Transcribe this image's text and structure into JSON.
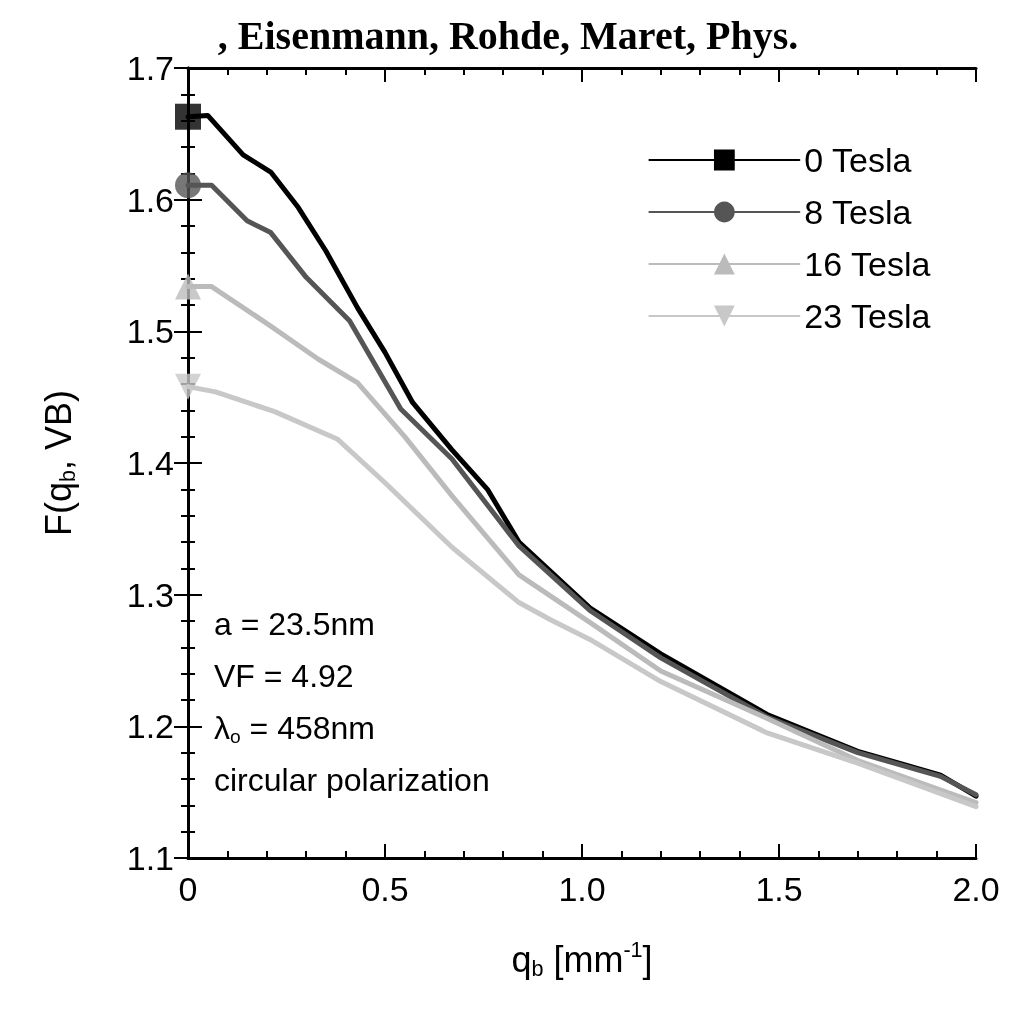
{
  "chart_data": {
    "type": "line",
    "title": ", Eisenmann, Rohde, Maret, Phys.",
    "xlabel": "q$_{b}$ [mm$^{-1}$]",
    "ylabel": "F(q$_{b}$, VB)",
    "xlim": [
      0,
      2
    ],
    "xticks": [
      {
        "value": 0,
        "label": "0"
      },
      0.5,
      {
        "value": 1,
        "label": "1.0"
      },
      1.5,
      {
        "value": 2,
        "label": "2.0"
      }
    ],
    "ylim": [
      1.1,
      1.7
    ],
    "yticks": [
      1.1,
      1.2,
      1.3,
      1.4,
      1.5,
      1.6,
      1.7
    ],
    "legend": "top right",
    "grid": false,
    "line_style": "solid",
    "annotations": [
      "a = 23.5nm",
      "VF = 4.92",
      "λ$_{o}$ = 458nm",
      "circular polarization"
    ],
    "series": [
      {
        "name": "0 Tesla",
        "color": "#000000",
        "x": [
          0,
          0.05,
          0.14,
          0.21,
          0.28,
          0.35,
          0.43,
          0.5,
          0.57,
          0.67,
          0.76,
          0.84,
          1.02,
          1.2,
          1.47,
          1.7,
          1.91,
          2.0
        ],
        "values": [
          1.663,
          1.664,
          1.634,
          1.621,
          1.594,
          1.561,
          1.518,
          1.484,
          1.446,
          1.41,
          1.38,
          1.34,
          1.29,
          1.255,
          1.209,
          1.181,
          1.163,
          1.147
        ]
      },
      {
        "type": "scatter",
        "color": "#000000",
        "marker": "square",
        "x": [
          0
        ],
        "values": [
          1.663
        ]
      },
      {
        "name": "8 Tesla",
        "color": "#555555",
        "x": [
          0,
          0.06,
          0.15,
          0.21,
          0.3,
          0.41,
          0.48,
          0.54,
          0.67,
          0.84,
          1.02,
          1.2,
          1.47,
          1.7,
          1.91,
          2.0
        ],
        "values": [
          1.611,
          1.611,
          1.584,
          1.575,
          1.541,
          1.508,
          1.472,
          1.441,
          1.403,
          1.337,
          1.288,
          1.252,
          1.207,
          1.18,
          1.162,
          1.148
        ]
      },
      {
        "type": "scatter",
        "color": "#555555",
        "marker": "circle",
        "x": [
          0
        ],
        "values": [
          1.611
        ]
      },
      {
        "name": "16 Tesla",
        "color": "#bbbbbb",
        "x": [
          0,
          0.06,
          0.21,
          0.33,
          0.43,
          0.55,
          0.67,
          0.84,
          1.02,
          1.2,
          1.47,
          1.7,
          2.0
        ],
        "values": [
          1.534,
          1.534,
          1.504,
          1.479,
          1.461,
          1.42,
          1.375,
          1.315,
          1.279,
          1.242,
          1.206,
          1.174,
          1.142
        ]
      },
      {
        "type": "scatter",
        "color": "#bbbbbb",
        "marker": "triangle",
        "x": [
          0
        ],
        "values": [
          1.534
        ]
      },
      {
        "name": "23 Tesla",
        "color": "#c8c8c8",
        "x": [
          0,
          0.07,
          0.22,
          0.38,
          0.5,
          0.67,
          0.84,
          0.92,
          1.02,
          1.2,
          1.47,
          1.7,
          2.0
        ],
        "values": [
          1.458,
          1.454,
          1.439,
          1.418,
          1.385,
          1.336,
          1.294,
          1.281,
          1.266,
          1.234,
          1.195,
          1.172,
          1.139
        ]
      },
      {
        "type": "scatter",
        "color": "#c8c8c8",
        "marker": "triangle-down",
        "x": [
          0
        ],
        "values": [
          1.458
        ]
      }
    ]
  }
}
